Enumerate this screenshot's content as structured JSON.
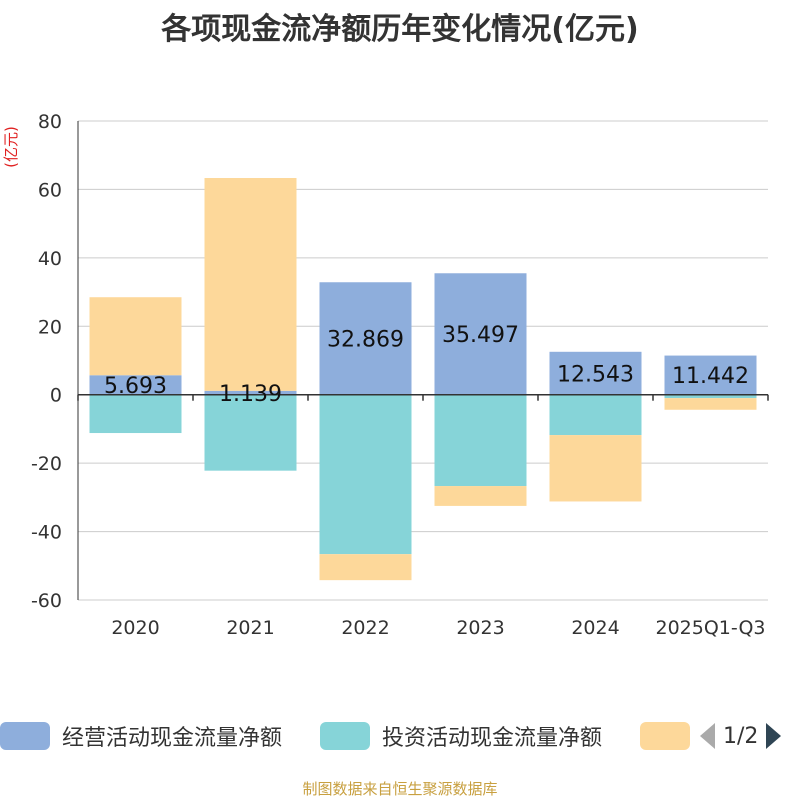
{
  "chart_data": {
    "type": "bar",
    "stacked": true,
    "title": "各项现金流净额历年变化情况(亿元)",
    "ylabel": "(亿元)",
    "ylim": [
      -60,
      80
    ],
    "yticks": [
      -60,
      -40,
      -20,
      0,
      20,
      40,
      60,
      80
    ],
    "categories": [
      "2020",
      "2021",
      "2022",
      "2023",
      "2024",
      "2025Q1-Q3"
    ],
    "series": [
      {
        "name": "经营活动现金流量净额",
        "color": "#8eaedc",
        "values": [
          5.693,
          1.139,
          32.869,
          35.497,
          12.543,
          11.442
        ]
      },
      {
        "name": "投资活动现金流量净额",
        "color": "#86d4d8",
        "values": [
          -11.2,
          -22.2,
          -46.6,
          -26.7,
          -11.8,
          -1.0
        ]
      },
      {
        "name": "",
        "color": "#fdd89a",
        "values": [
          22.8,
          62.2,
          -7.6,
          -5.8,
          -19.4,
          -3.4
        ]
      }
    ],
    "data_labels": [
      "5.693",
      "1.139",
      "32.869",
      "35.497",
      "12.543",
      "11.442"
    ],
    "grid": true,
    "legend_position": "bottom"
  },
  "legend": {
    "items": [
      "经营活动现金流量净额",
      "投资活动现金流量净额",
      ""
    ],
    "page_indicator": "1/2"
  },
  "footer": {
    "source": "制图数据来自恒生聚源数据库"
  }
}
